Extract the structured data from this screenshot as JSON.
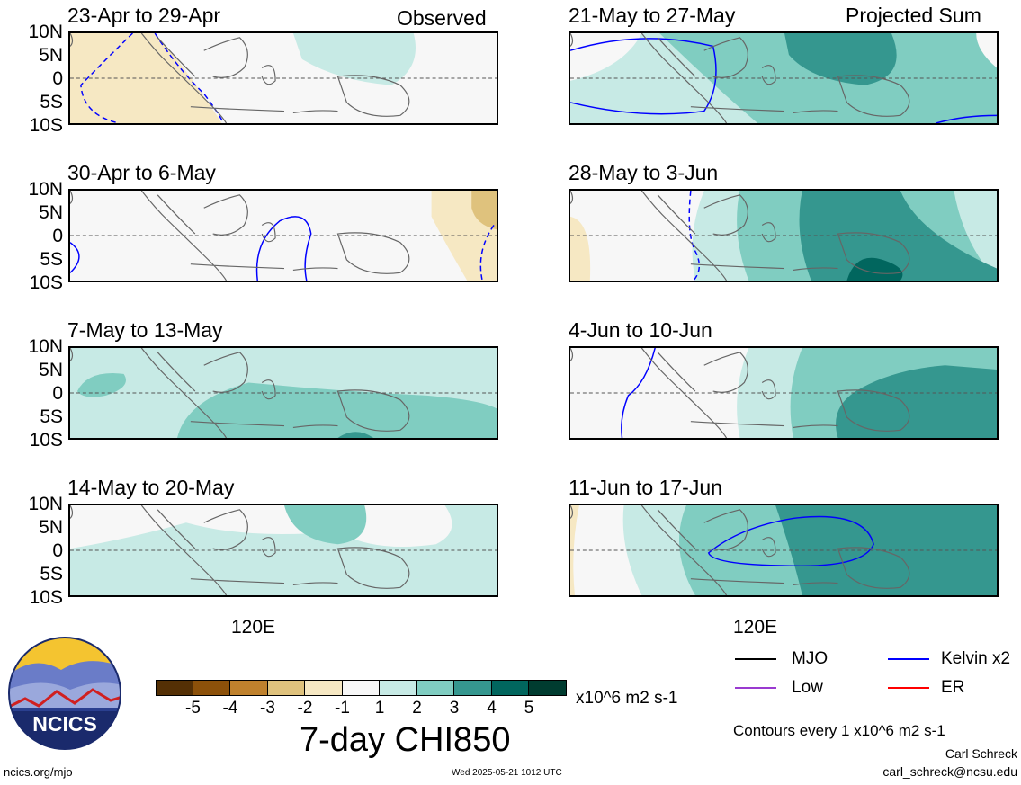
{
  "left_header": "Observed",
  "right_header": "Projected Sum",
  "lat_labels": [
    "10N",
    "5N",
    "0",
    "5S",
    "10S"
  ],
  "lon_label": "120E",
  "panels_left": [
    "23-Apr to 29-Apr",
    "30-Apr to 6-May",
    "7-May to 13-May",
    "14-May to 20-May"
  ],
  "panels_right": [
    "21-May to 27-May",
    "28-May to 3-Jun",
    "4-Jun to 10-Jun",
    "11-Jun to 17-Jun"
  ],
  "colorbar": {
    "ticks": [
      "-5",
      "-4",
      "-3",
      "-2",
      "-1",
      "1",
      "2",
      "3",
      "4",
      "5"
    ],
    "colors": [
      "#543005",
      "#8c510a",
      "#bf812d",
      "#dfc27d",
      "#f6e8c3",
      "#f7f7f7",
      "#c7eae5",
      "#80cdc1",
      "#35978f",
      "#01665e",
      "#003c30"
    ],
    "units": "x10^6 m2 s-1",
    "title": "7-day CHI850"
  },
  "legend": {
    "mjo": "MJO",
    "low": "Low",
    "kelvin": "Kelvin x2",
    "er": "ER",
    "colors": {
      "mjo": "#000000",
      "low": "#9a3ad0",
      "kelvin": "#0000ff",
      "er": "#ff0000"
    },
    "contours_note": "Contours every 1 x10^6 m2 s-1"
  },
  "logo_text": "NCICS",
  "footer": {
    "url": "ncics.org/mjo",
    "timestamp": "Wed 2025-05-21 1012 UTC",
    "author": "Carl Schreck",
    "email": "carl_schreck@ncsu.edu"
  }
}
